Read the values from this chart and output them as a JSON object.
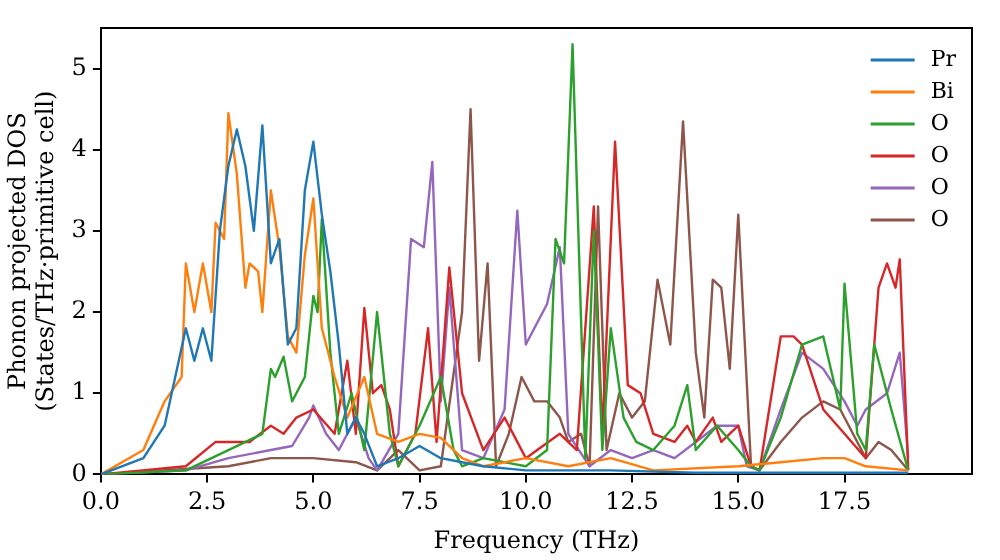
{
  "chart_data": {
    "type": "line",
    "xlabel": "Frequency (THz)",
    "ylabel": "Phonon projected DOS\n(States/THz·primitive cell)",
    "xlim": [
      0,
      20.5
    ],
    "ylim": [
      0,
      5.5
    ],
    "xticks": [
      {
        "value": 0,
        "label": "0.0"
      },
      {
        "value": 2.5,
        "label": "2.5"
      },
      {
        "value": 5,
        "label": "5.0"
      },
      {
        "value": 7.5,
        "label": "7.5"
      },
      {
        "value": 10,
        "label": "10.0"
      },
      {
        "value": 12.5,
        "label": "12.5"
      },
      {
        "value": 15,
        "label": "15.0"
      },
      {
        "value": 17.5,
        "label": "17.5"
      }
    ],
    "yticks": [
      0,
      1,
      2,
      3,
      4,
      5
    ],
    "grid": false,
    "legend": "top right",
    "marker": "none",
    "line_style": "solid",
    "series": [
      {
        "name": "Pr",
        "color": "#1f77b4",
        "x": [
          0,
          1,
          1.5,
          2,
          2.2,
          2.4,
          2.6,
          2.8,
          3,
          3.2,
          3.4,
          3.6,
          3.8,
          4,
          4.2,
          4.4,
          4.6,
          4.8,
          5,
          5.2,
          5.4,
          5.6,
          5.8,
          6,
          6.2,
          6.5,
          7,
          7.5,
          8,
          8.5,
          9,
          10,
          12,
          14,
          19
        ],
        "values": [
          0,
          0.2,
          0.6,
          1.8,
          1.4,
          1.8,
          1.4,
          3,
          3.8,
          4.25,
          3.8,
          3,
          4.3,
          2.6,
          2.9,
          1.6,
          1.8,
          3.5,
          4.1,
          3.2,
          2.5,
          1.6,
          0.5,
          0.7,
          0.5,
          0.1,
          0.2,
          0.35,
          0.2,
          0.15,
          0.1,
          0.05,
          0.05,
          0.02,
          0.02
        ]
      },
      {
        "name": "Bi",
        "color": "#ff7f0e",
        "x": [
          0,
          1,
          1.5,
          1.9,
          2,
          2.2,
          2.4,
          2.6,
          2.7,
          2.9,
          3,
          3.2,
          3.4,
          3.5,
          3.7,
          3.8,
          4,
          4.2,
          4.4,
          4.6,
          4.8,
          5,
          5.2,
          5.5,
          5.8,
          6.2,
          6.5,
          7,
          7.5,
          8,
          8.5,
          9,
          10,
          11,
          12,
          13,
          15,
          16,
          17,
          17.5,
          18,
          19
        ],
        "values": [
          0,
          0.3,
          0.9,
          1.2,
          2.6,
          2,
          2.6,
          2,
          3.1,
          2.9,
          4.45,
          3.7,
          2.3,
          2.6,
          2.5,
          2,
          3.5,
          2.8,
          1.7,
          1.5,
          2.7,
          3.4,
          1.8,
          1.2,
          0.7,
          1.2,
          0.5,
          0.4,
          0.5,
          0.45,
          0.2,
          0.1,
          0.2,
          0.1,
          0.2,
          0.05,
          0.1,
          0.15,
          0.2,
          0.2,
          0.1,
          0.05
        ]
      },
      {
        "name": "O",
        "color": "#2ca02c",
        "x": [
          0,
          2,
          3,
          3.8,
          4,
          4.1,
          4.3,
          4.5,
          4.8,
          5,
          5.1,
          5.2,
          5.4,
          5.6,
          5.9,
          6.2,
          6.5,
          6.8,
          7,
          7.5,
          8,
          8.3,
          8.5,
          9,
          10,
          10.5,
          10.7,
          10.9,
          11.1,
          11.4,
          11.6,
          11.8,
          12,
          12.3,
          12.6,
          13,
          13.5,
          13.8,
          14,
          14.5,
          15,
          15.3,
          15.5,
          16,
          16.5,
          17,
          17.4,
          17.5,
          17.8,
          18,
          18.2,
          18.6,
          19
        ],
        "values": [
          0,
          0.05,
          0.3,
          0.5,
          1.3,
          1.2,
          1.45,
          0.9,
          1.2,
          2.2,
          2,
          3.15,
          1.5,
          0.5,
          1,
          0.3,
          2,
          0.5,
          0.1,
          0.6,
          1.2,
          0.3,
          0.1,
          0.2,
          0.1,
          0.3,
          2.9,
          2.6,
          5.3,
          0.2,
          3,
          0.3,
          1.8,
          0.7,
          0.4,
          0.3,
          0.6,
          1.1,
          0.3,
          0.6,
          0.3,
          0.1,
          0.05,
          0.7,
          1.6,
          1.7,
          0.8,
          2.35,
          0.5,
          0.3,
          1.6,
          0.8,
          0.05
        ]
      },
      {
        "name": "O",
        "color": "#d62728",
        "x": [
          0,
          2,
          2.7,
          3.5,
          4,
          4.3,
          4.6,
          5,
          5.5,
          5.8,
          6,
          6.2,
          6.4,
          6.6,
          6.8,
          7,
          7.4,
          7.7,
          7.9,
          8.2,
          8.5,
          9,
          9.5,
          10,
          10.8,
          11.2,
          11.6,
          11.8,
          12.1,
          12.4,
          12.7,
          13,
          13.5,
          13.8,
          14,
          14.4,
          14.6,
          15,
          15.3,
          15.5,
          16,
          16.3,
          16.5,
          17,
          17.5,
          18,
          18.3,
          18.5,
          18.7,
          18.8,
          19
        ],
        "values": [
          0,
          0.1,
          0.4,
          0.4,
          0.6,
          0.5,
          0.7,
          0.8,
          0.5,
          1.4,
          0.5,
          2.05,
          1,
          1.1,
          0.8,
          0.1,
          0.5,
          1.8,
          0.4,
          2.55,
          1,
          0.3,
          0.7,
          0.2,
          0.5,
          0.3,
          3.3,
          0.5,
          4.1,
          1.1,
          1,
          0.5,
          0.4,
          0.6,
          0.4,
          0.7,
          0.4,
          0.6,
          0.1,
          0.05,
          1.7,
          1.7,
          1.6,
          0.8,
          0.5,
          0.2,
          2.3,
          2.6,
          2.3,
          2.65,
          0.05
        ]
      },
      {
        "name": "O",
        "color": "#9467bd",
        "x": [
          0,
          2,
          3,
          4,
          4.5,
          4.9,
          5,
          5.3,
          5.6,
          6,
          6.3,
          6.5,
          7,
          7.3,
          7.6,
          7.8,
          8,
          8.2,
          8.5,
          9,
          9.5,
          9.8,
          10,
          10.5,
          10.8,
          11,
          11.5,
          12,
          12.5,
          13,
          13.5,
          14,
          14.5,
          15,
          15.2,
          15.5,
          16,
          16.5,
          17,
          17.5,
          17.8,
          18,
          18.5,
          18.8,
          19
        ],
        "values": [
          0,
          0.05,
          0.2,
          0.3,
          0.35,
          0.7,
          0.85,
          0.5,
          0.3,
          0.7,
          0.2,
          0.05,
          0.5,
          2.9,
          2.8,
          3.85,
          0.9,
          2.3,
          0.3,
          0.2,
          0.8,
          3.25,
          1.6,
          2.1,
          2.8,
          0.5,
          0.1,
          0.3,
          0.2,
          0.3,
          0.2,
          0.4,
          0.6,
          0.6,
          0.1,
          0.05,
          0.8,
          1.5,
          1.3,
          0.9,
          0.6,
          0.8,
          1,
          1.5,
          0.2
        ]
      },
      {
        "name": "O",
        "color": "#8c564b",
        "x": [
          0,
          3,
          4,
          5,
          6,
          6.5,
          7,
          7.5,
          8,
          8.5,
          8.7,
          8.9,
          9.1,
          9.3,
          9.6,
          9.9,
          10.2,
          10.5,
          10.8,
          11,
          11.3,
          11.5,
          11.7,
          11.9,
          12.2,
          12.5,
          12.8,
          13.1,
          13.4,
          13.7,
          14,
          14.2,
          14.4,
          14.6,
          14.8,
          15,
          15.3,
          15.5,
          16,
          16.5,
          17,
          17.4,
          17.6,
          18,
          18.3,
          18.6,
          19
        ],
        "values": [
          0,
          0.1,
          0.2,
          0.2,
          0.15,
          0.05,
          0.3,
          0.05,
          0.1,
          2,
          4.5,
          1.4,
          2.6,
          0.1,
          0.5,
          1.2,
          0.9,
          0.9,
          0.7,
          0.4,
          0.5,
          0.1,
          3.3,
          0.3,
          1,
          0.7,
          0.9,
          2.4,
          1.6,
          4.35,
          1.5,
          0.7,
          2.4,
          2.3,
          1.3,
          3.2,
          0.1,
          0.05,
          0.4,
          0.7,
          0.9,
          0.8,
          0.6,
          0.2,
          0.4,
          0.3,
          0.05
        ]
      }
    ]
  }
}
